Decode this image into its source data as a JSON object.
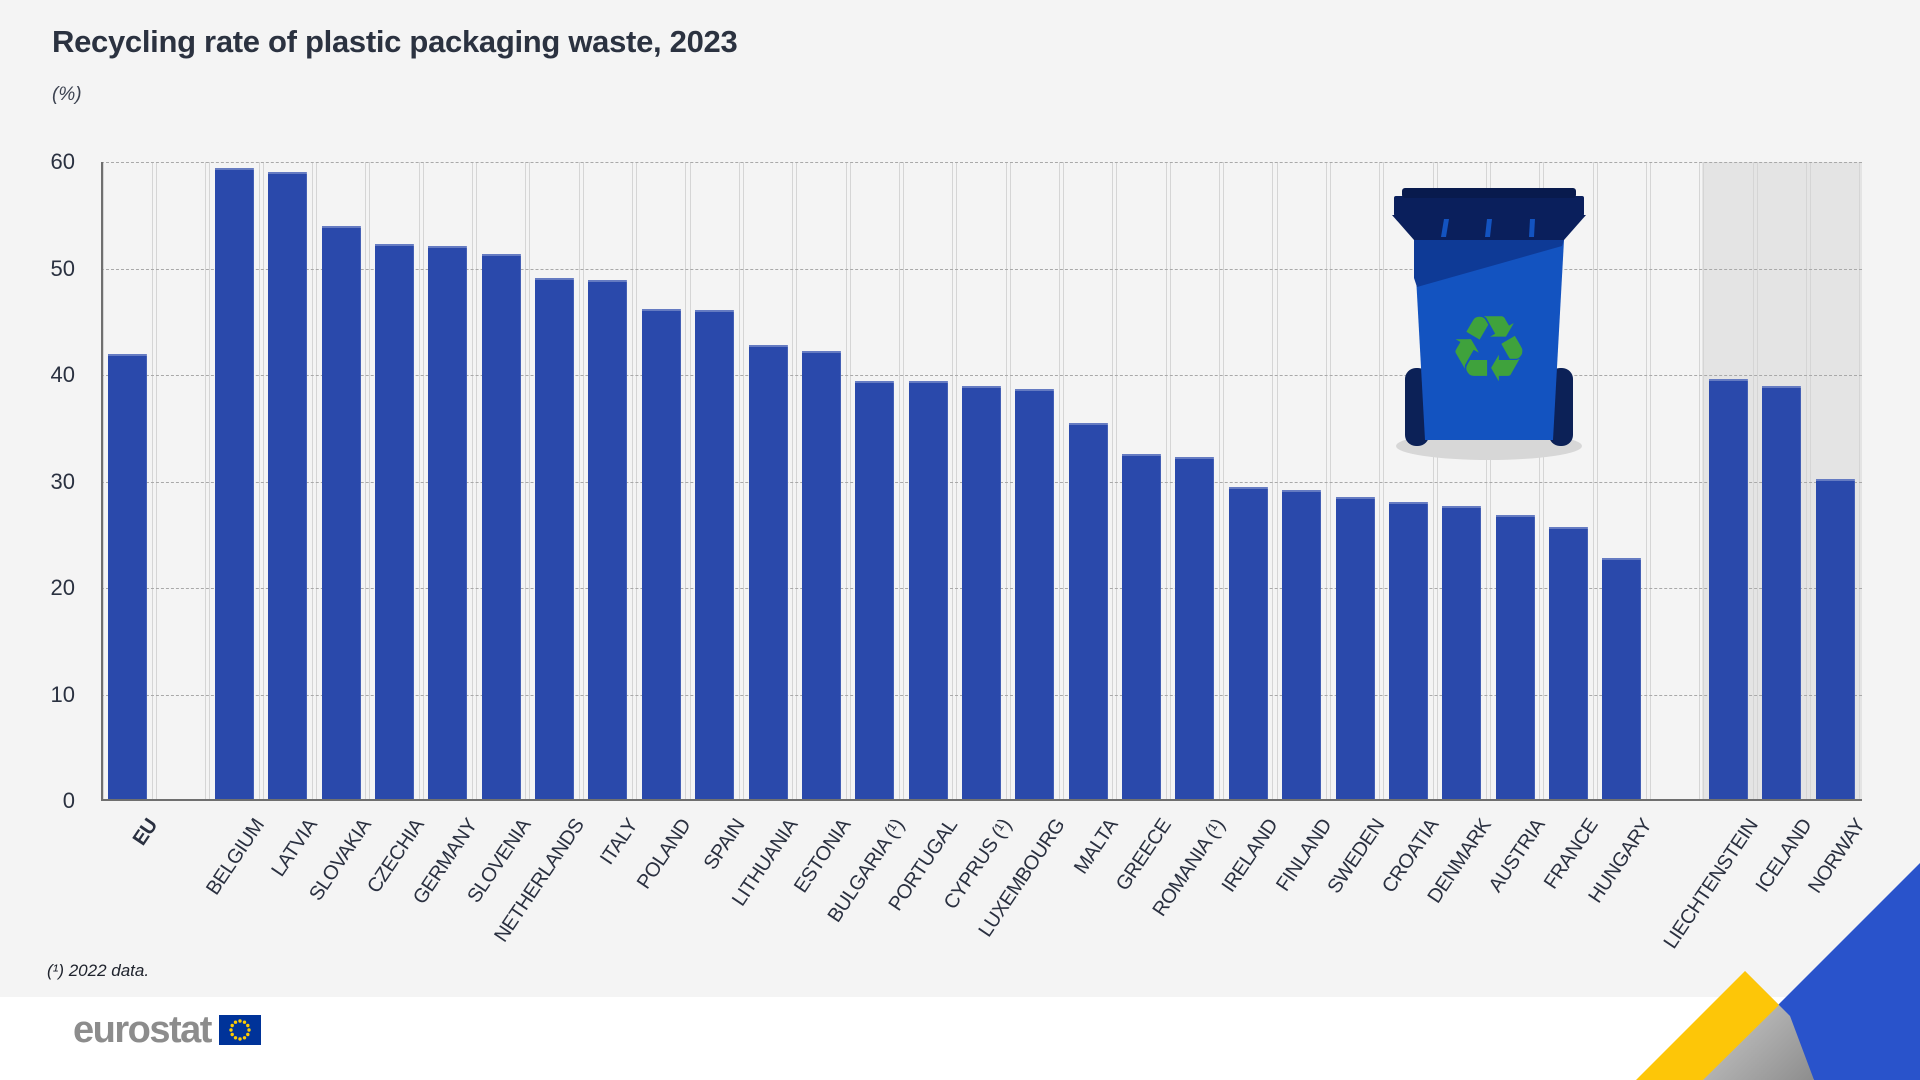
{
  "header": {
    "title": "Recycling rate of plastic packaging waste, 2023",
    "subtitle": "(%)"
  },
  "footnote": "(¹) 2022 data.",
  "logo": {
    "text": "eurostat"
  },
  "chart_data": {
    "type": "bar",
    "title": "Recycling rate of plastic packaging waste, 2023",
    "unit": "%",
    "xlabel": "",
    "ylabel": "(%)",
    "ylim": [
      0,
      60
    ],
    "yticks": [
      0,
      10,
      20,
      30,
      40,
      50,
      60
    ],
    "grid": "horizontal-dashed",
    "legend": "none",
    "bar_color": "#2a49ab",
    "efta_panel_color": "#e4e4e4",
    "layout": {
      "slot_count": 33,
      "spacer_slots": [
        1,
        29
      ],
      "efta_slots": [
        30,
        31,
        32
      ]
    },
    "items": [
      {
        "label": "EU",
        "value": 42.0,
        "group": "eu-aggregate",
        "bold": true
      },
      {
        "label": "BELGIUM",
        "value": 59.4,
        "group": "member"
      },
      {
        "label": "LATVIA",
        "value": 59.1,
        "group": "member"
      },
      {
        "label": "SLOVAKIA",
        "value": 54.0,
        "group": "member"
      },
      {
        "label": "CZECHIA",
        "value": 52.3,
        "group": "member"
      },
      {
        "label": "GERMANY",
        "value": 52.1,
        "group": "member"
      },
      {
        "label": "SLOVENIA",
        "value": 51.4,
        "group": "member"
      },
      {
        "label": "NETHERLANDS",
        "value": 49.1,
        "group": "member"
      },
      {
        "label": "ITALY",
        "value": 48.9,
        "group": "member"
      },
      {
        "label": "POLAND",
        "value": 46.2,
        "group": "member"
      },
      {
        "label": "SPAIN",
        "value": 46.1,
        "group": "member"
      },
      {
        "label": "LITHUANIA",
        "value": 42.8,
        "group": "member"
      },
      {
        "label": "ESTONIA",
        "value": 42.3,
        "group": "member"
      },
      {
        "label": "BULGARIA (¹)",
        "value": 39.4,
        "group": "member"
      },
      {
        "label": "PORTUGAL",
        "value": 39.4,
        "group": "member"
      },
      {
        "label": "CYPRUS (¹)",
        "value": 39.0,
        "group": "member"
      },
      {
        "label": "LUXEMBOURG",
        "value": 38.7,
        "group": "member"
      },
      {
        "label": "MALTA",
        "value": 35.5,
        "group": "member"
      },
      {
        "label": "GREECE",
        "value": 32.6,
        "group": "member"
      },
      {
        "label": "ROMANIA (¹)",
        "value": 32.3,
        "group": "member"
      },
      {
        "label": "IRELAND",
        "value": 29.5,
        "group": "member"
      },
      {
        "label": "FINLAND",
        "value": 29.2,
        "group": "member"
      },
      {
        "label": "SWEDEN",
        "value": 28.5,
        "group": "member"
      },
      {
        "label": "CROATIA",
        "value": 28.1,
        "group": "member"
      },
      {
        "label": "DENMARK",
        "value": 27.7,
        "group": "member"
      },
      {
        "label": "AUSTRIA",
        "value": 26.9,
        "group": "member"
      },
      {
        "label": "FRANCE",
        "value": 25.7,
        "group": "member"
      },
      {
        "label": "HUNGARY",
        "value": 22.8,
        "group": "member"
      },
      {
        "label": "LIECHTENSTEIN",
        "value": 39.6,
        "group": "efta"
      },
      {
        "label": "ICELAND",
        "value": 39.0,
        "group": "efta"
      },
      {
        "label": "NORWAY",
        "value": 30.2,
        "group": "efta"
      }
    ]
  },
  "decor": {
    "bin_icon": "recycling-bin",
    "ribbon_colors": {
      "yellow": "#fdc608",
      "gray": "#ababab",
      "blue": "#2953cb"
    }
  }
}
